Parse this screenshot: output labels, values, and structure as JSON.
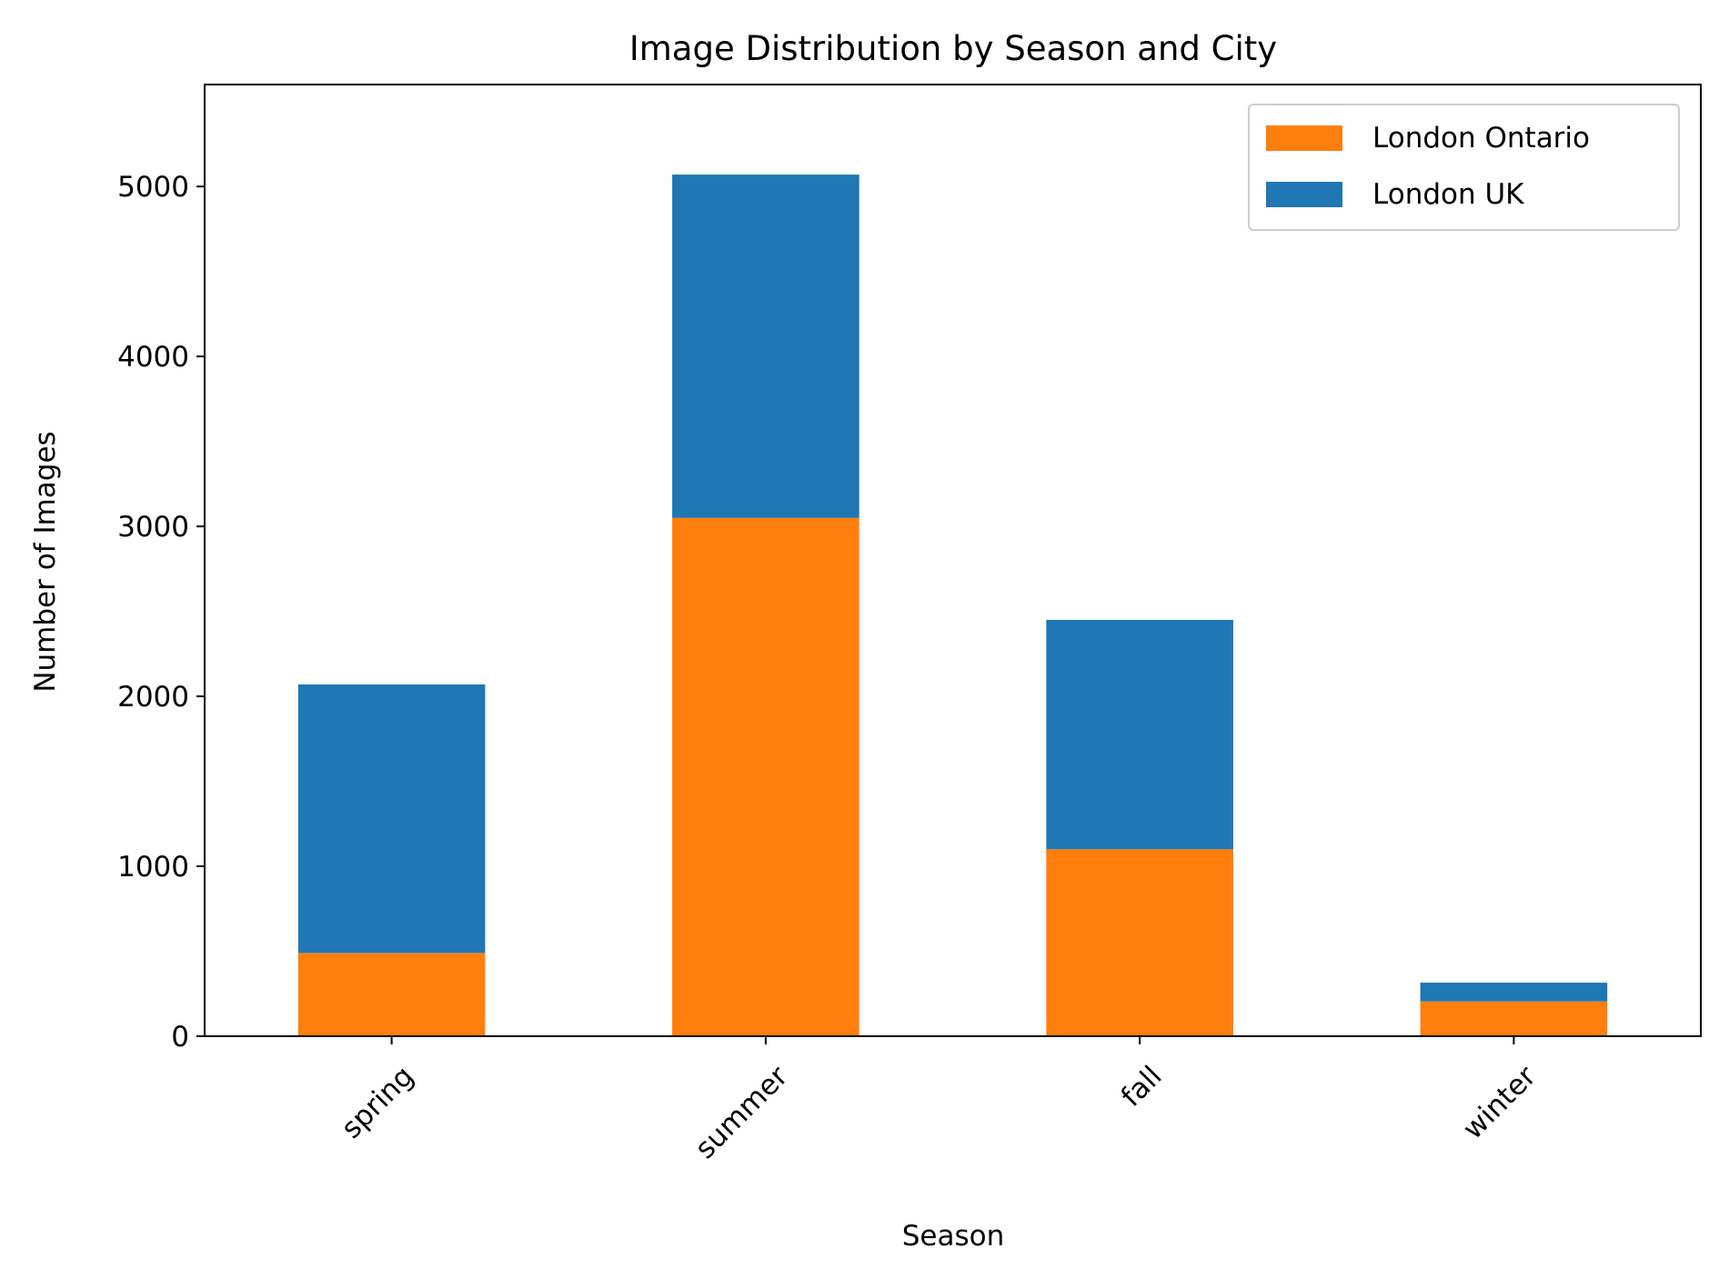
{
  "chart_data": {
    "type": "bar",
    "stacked": true,
    "title": "Image Distribution by Season and City",
    "xlabel": "Season",
    "ylabel": "Number of Images",
    "categories": [
      "spring",
      "summer",
      "fall",
      "winter"
    ],
    "ylim": [
      0,
      5600
    ],
    "yticks": [
      0,
      1000,
      2000,
      3000,
      4000,
      5000
    ],
    "grid": false,
    "legend_position": "top-right",
    "series": [
      {
        "name": "London Ontario",
        "color": "#ff7f0e",
        "values": [
          490,
          3050,
          1100,
          205
        ]
      },
      {
        "name": "London UK",
        "color": "#1f77b4",
        "values": [
          1580,
          2020,
          1350,
          110
        ]
      }
    ]
  }
}
